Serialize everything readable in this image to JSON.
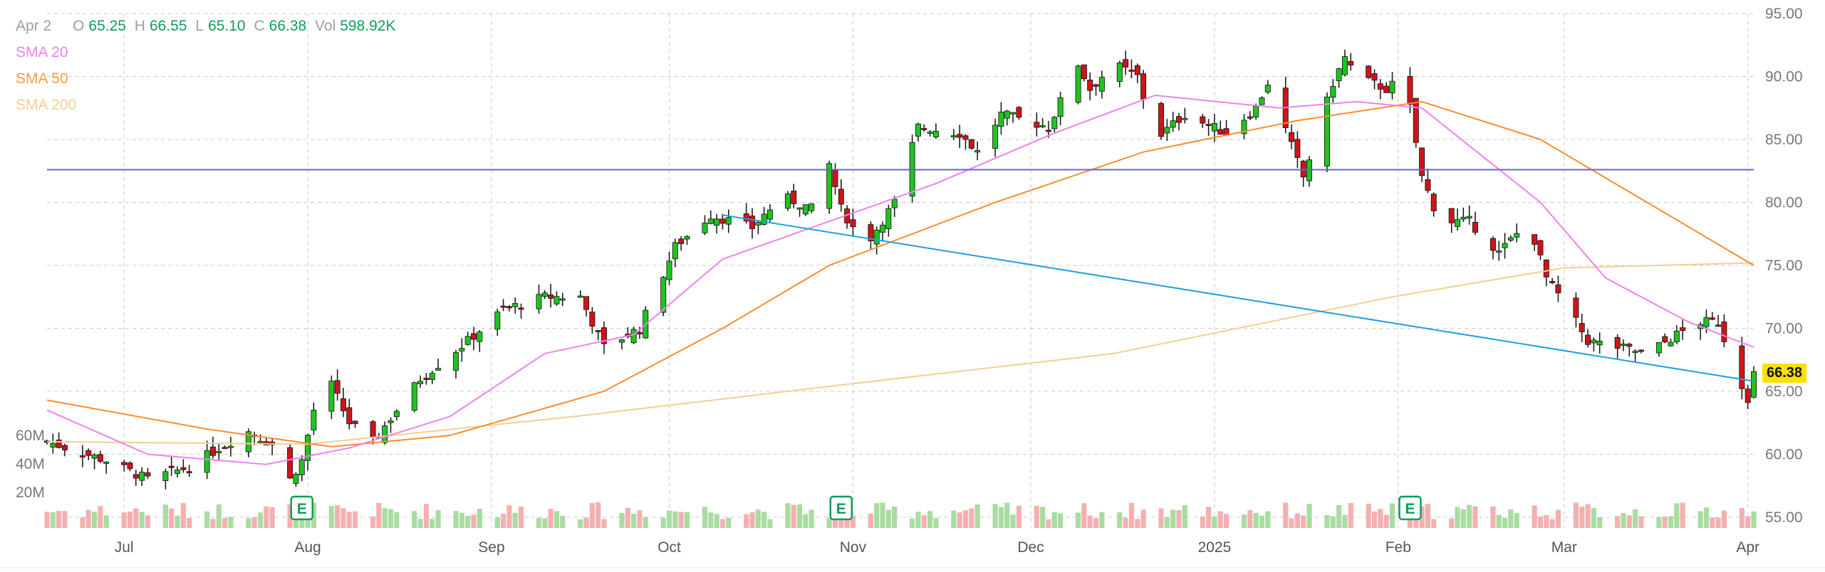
{
  "legend": {
    "date": "Apr 2",
    "open_label": "O",
    "open": "65.25",
    "high_label": "H",
    "high": "66.55",
    "low_label": "L",
    "low": "65.10",
    "close_label": "C",
    "close": "66.38",
    "vol_label": "Vol",
    "vol": "598.92K",
    "sma20": "SMA 20",
    "sma50": "SMA 50",
    "sma200": "SMA 200"
  },
  "last_price": "66.38",
  "colors": {
    "up": "#1fc41f",
    "down": "#d0131a",
    "wick": "#111111",
    "sma20": "#ee82ee",
    "sma50": "#ff8c2e",
    "sma200": "#f3cf93",
    "resistance": "#6666cc",
    "trendline": "#1fa0e0",
    "vol_up": "#a8dca0",
    "vol_down": "#f4b0b0",
    "earnings": "#0f9d58"
  },
  "chart_data": {
    "type": "candlestick",
    "y_axis": {
      "position": "right",
      "ticks": [
        55,
        60,
        65,
        70,
        75,
        80,
        85,
        90,
        95
      ],
      "ylim": [
        54,
        96
      ]
    },
    "x_axis": {
      "labels": [
        "Jul",
        "Aug",
        "Sep",
        "Oct",
        "Nov",
        "Dec",
        "2025",
        "Feb",
        "Mar",
        "Apr"
      ]
    },
    "volume_axis": {
      "ticks": [
        "20M",
        "40M",
        "60M"
      ]
    },
    "grid": true,
    "horizontal_line": 82.6,
    "trendline": {
      "from": [
        "Oct 10",
        79.0
      ],
      "to": [
        "Apr 2",
        65.8
      ]
    },
    "earnings_markers": [
      "Jul 31",
      "Oct 30",
      "Feb 3"
    ],
    "anchors": [
      {
        "d": "Jun 18",
        "p": 61.0
      },
      {
        "d": "Jun 28",
        "p": 59.5
      },
      {
        "d": "Jul 5",
        "p": 58.0
      },
      {
        "d": "Jul 12",
        "p": 59.0
      },
      {
        "d": "Jul 17",
        "p": 60.5
      },
      {
        "d": "Jul 22",
        "p": 61.8
      },
      {
        "d": "Jul 26",
        "p": 60.8
      },
      {
        "d": "Jul 29",
        "p": 58.0
      },
      {
        "d": "Jul 31",
        "p": 59.5
      },
      {
        "d": "Aug 2",
        "p": 63.5
      },
      {
        "d": "Aug 5",
        "p": 65.5
      },
      {
        "d": "Aug 8",
        "p": 62.5
      },
      {
        "d": "Aug 12",
        "p": 61.0
      },
      {
        "d": "Aug 20",
        "p": 66.0
      },
      {
        "d": "Aug 28",
        "p": 69.0
      },
      {
        "d": "Sep 3",
        "p": 71.5
      },
      {
        "d": "Sep 10",
        "p": 72.5
      },
      {
        "d": "Sep 16",
        "p": 72.5
      },
      {
        "d": "Sep 20",
        "p": 68.5
      },
      {
        "d": "Sep 26",
        "p": 70.0
      },
      {
        "d": "Oct 2",
        "p": 76.5
      },
      {
        "d": "Oct 8",
        "p": 79.0
      },
      {
        "d": "Oct 15",
        "p": 78.0
      },
      {
        "d": "Oct 20",
        "p": 80.5
      },
      {
        "d": "Oct 25",
        "p": 79.5
      },
      {
        "d": "Oct 28",
        "p": 83.0
      },
      {
        "d": "Oct 30",
        "p": 79.5
      },
      {
        "d": "Nov 3",
        "p": 76.5
      },
      {
        "d": "Nov 8",
        "p": 80.0
      },
      {
        "d": "Nov 12",
        "p": 86.0
      },
      {
        "d": "Nov 19",
        "p": 85.5
      },
      {
        "d": "Nov 22",
        "p": 84.0
      },
      {
        "d": "Nov 26",
        "p": 87.0
      },
      {
        "d": "Dec 4",
        "p": 86.0
      },
      {
        "d": "Dec 9",
        "p": 91.0
      },
      {
        "d": "Dec 11",
        "p": 89.0
      },
      {
        "d": "Dec 15",
        "p": 91.0
      },
      {
        "d": "Dec 19",
        "p": 90.0
      },
      {
        "d": "Dec 22",
        "p": 85.0
      },
      {
        "d": "Dec 27",
        "p": 87.0
      },
      {
        "d": "Jan 3",
        "p": 85.5
      },
      {
        "d": "Jan 8",
        "p": 87.5
      },
      {
        "d": "Jan 10",
        "p": 89.5
      },
      {
        "d": "Jan 16",
        "p": 82.0
      },
      {
        "d": "Jan 18",
        "p": 85.0
      },
      {
        "d": "Jan 21",
        "p": 89.5
      },
      {
        "d": "Jan 23",
        "p": 91.5
      },
      {
        "d": "Jan 25",
        "p": 90.0
      },
      {
        "d": "Jan 30",
        "p": 89.0
      },
      {
        "d": "Feb 2",
        "p": 90.0
      },
      {
        "d": "Feb 3",
        "p": 87.5
      },
      {
        "d": "Feb 5",
        "p": 82.0
      },
      {
        "d": "Feb 8",
        "p": 78.5
      },
      {
        "d": "Feb 13",
        "p": 78.5
      },
      {
        "d": "Feb 18",
        "p": 76.0
      },
      {
        "d": "Feb 23",
        "p": 78.5
      },
      {
        "d": "Feb 26",
        "p": 74.0
      },
      {
        "d": "Mar 1",
        "p": 72.0
      },
      {
        "d": "Mar 5",
        "p": 69.0
      },
      {
        "d": "Mar 10",
        "p": 68.5
      },
      {
        "d": "Mar 15",
        "p": 68.0
      },
      {
        "d": "Mar 20",
        "p": 69.5
      },
      {
        "d": "Mar 24",
        "p": 70.5
      },
      {
        "d": "Mar 27",
        "p": 70.5
      },
      {
        "d": "Mar 30",
        "p": 66.5
      },
      {
        "d": "Apr 1",
        "p": 64.5
      },
      {
        "d": "Apr 2",
        "p": 66.4
      }
    ],
    "sma20": [
      {
        "d": "Jun 18",
        "p": 63.5
      },
      {
        "d": "Jul 5",
        "p": 60.0
      },
      {
        "d": "Jul 25",
        "p": 59.2
      },
      {
        "d": "Aug 8",
        "p": 60.5
      },
      {
        "d": "Aug 25",
        "p": 63.0
      },
      {
        "d": "Sep 10",
        "p": 68.0
      },
      {
        "d": "Sep 25",
        "p": 69.5
      },
      {
        "d": "Oct 10",
        "p": 75.5
      },
      {
        "d": "Oct 28",
        "p": 78.5
      },
      {
        "d": "Nov 15",
        "p": 81.5
      },
      {
        "d": "Dec 5",
        "p": 85.5
      },
      {
        "d": "Dec 22",
        "p": 88.5
      },
      {
        "d": "Jan 12",
        "p": 87.5
      },
      {
        "d": "Jan 25",
        "p": 88.0
      },
      {
        "d": "Feb 5",
        "p": 87.5
      },
      {
        "d": "Feb 25",
        "p": 80.0
      },
      {
        "d": "Mar 8",
        "p": 74.0
      },
      {
        "d": "Mar 22",
        "p": 70.5
      },
      {
        "d": "Apr 2",
        "p": 68.5
      }
    ],
    "sma50": [
      {
        "d": "Jun 18",
        "p": 64.3
      },
      {
        "d": "Jul 15",
        "p": 62.0
      },
      {
        "d": "Aug 5",
        "p": 60.6
      },
      {
        "d": "Aug 25",
        "p": 61.5
      },
      {
        "d": "Sep 20",
        "p": 65.0
      },
      {
        "d": "Oct 10",
        "p": 70.0
      },
      {
        "d": "Oct 28",
        "p": 75.0
      },
      {
        "d": "Nov 25",
        "p": 80.0
      },
      {
        "d": "Dec 20",
        "p": 84.0
      },
      {
        "d": "Jan 15",
        "p": 86.5
      },
      {
        "d": "Feb 5",
        "p": 88.0
      },
      {
        "d": "Feb 25",
        "p": 85.0
      },
      {
        "d": "Mar 15",
        "p": 80.0
      },
      {
        "d": "Apr 2",
        "p": 75.0
      }
    ],
    "sma200": [
      {
        "d": "Jun 18",
        "p": 61.0
      },
      {
        "d": "Aug 1",
        "p": 60.8
      },
      {
        "d": "Sep 15",
        "p": 63.0
      },
      {
        "d": "Oct 30",
        "p": 65.5
      },
      {
        "d": "Dec 15",
        "p": 68.0
      },
      {
        "d": "Jan 31",
        "p": 72.5
      },
      {
        "d": "Mar 1",
        "p": 74.8
      },
      {
        "d": "Apr 2",
        "p": 75.2
      }
    ]
  }
}
